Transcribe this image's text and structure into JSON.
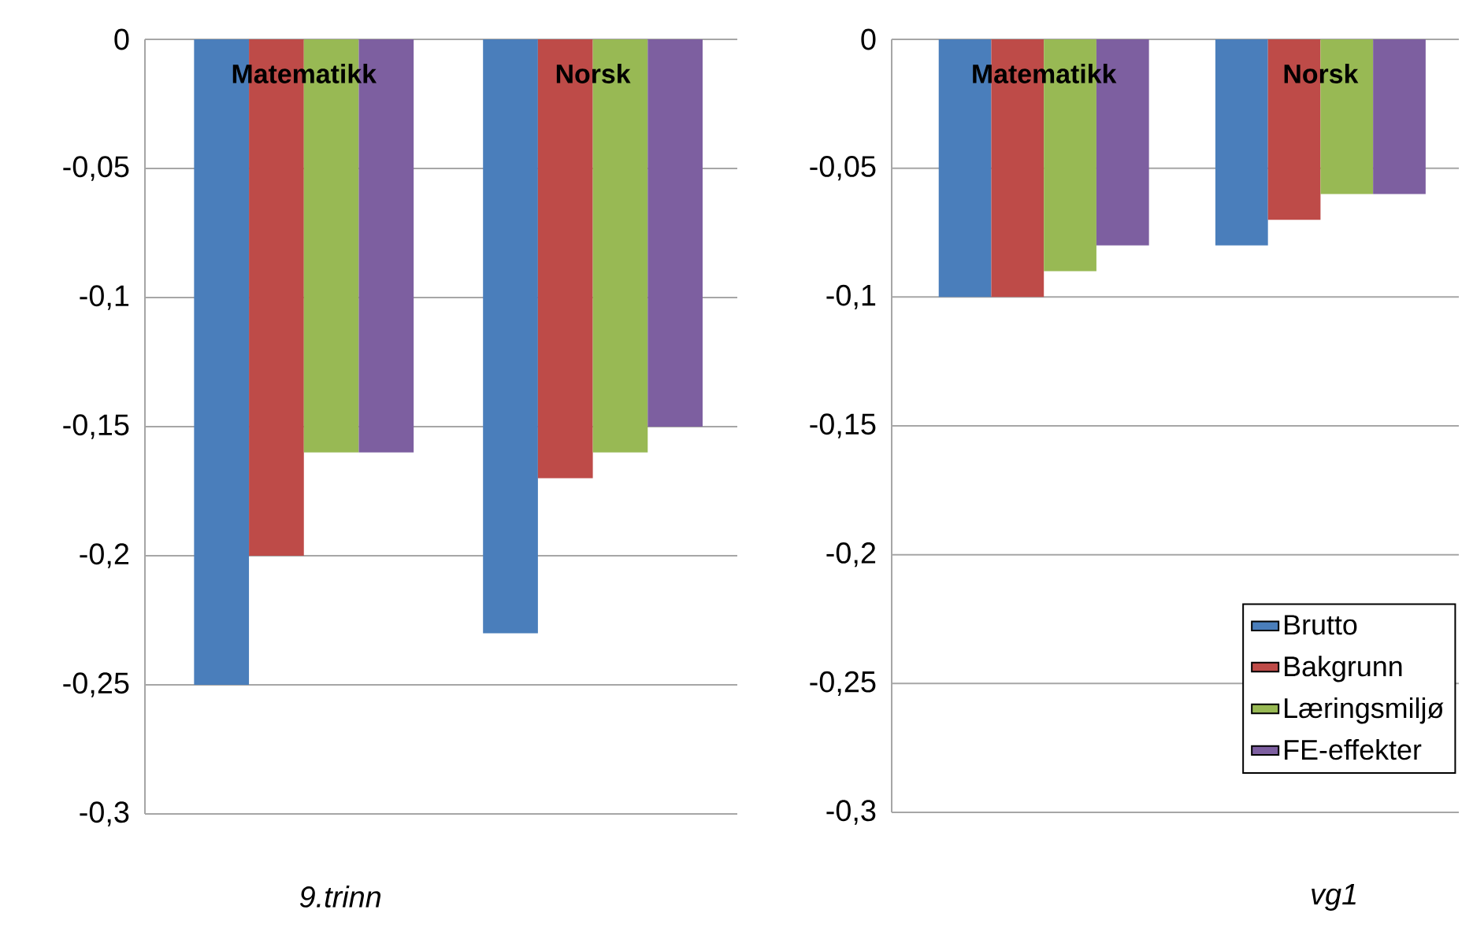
{
  "chart_data": [
    {
      "type": "bar",
      "xlabel": "9.trinn",
      "categories": [
        "Matematikk",
        "Norsk"
      ],
      "series": [
        {
          "color": "#4a7ebb",
          "values": [
            -0.25,
            -0.23
          ]
        },
        {
          "color": "#be4b48",
          "values": [
            -0.2,
            -0.17
          ]
        },
        {
          "color": "#98b954",
          "values": [
            -0.16,
            -0.16
          ]
        },
        {
          "color": "#7d5fa0",
          "values": [
            -0.16,
            -0.15
          ]
        }
      ],
      "ylim": [
        -0.3,
        0
      ],
      "yticks": [
        0,
        {
          "value": -0.05,
          "label": "-0,05"
        },
        {
          "value": -0.1,
          "label": "-0,1"
        },
        {
          "value": -0.15,
          "label": "-0,15"
        },
        {
          "value": -0.2,
          "label": "-0,2"
        },
        {
          "value": -0.25,
          "label": "-0,25"
        },
        {
          "value": -0.3,
          "label": "-0,3"
        }
      ],
      "grid": "y",
      "legend": false
    },
    {
      "type": "bar",
      "xlabel": "vg1",
      "categories": [
        "Matematikk",
        "Norsk"
      ],
      "series": [
        {
          "name": "Brutto",
          "color": "#4a7ebb",
          "values": [
            -0.1,
            -0.08
          ]
        },
        {
          "name": "Bakgrunn",
          "color": "#be4b48",
          "values": [
            -0.1,
            -0.07
          ]
        },
        {
          "name": "Læringsmiljø",
          "color": "#98b954",
          "values": [
            -0.09,
            -0.06
          ]
        },
        {
          "name": "FE-effekter",
          "color": "#7d5fa0",
          "values": [
            -0.08,
            -0.06
          ]
        }
      ],
      "ylim": [
        -0.3,
        0
      ],
      "yticks": [
        0,
        {
          "value": -0.05,
          "label": "-0,05"
        },
        {
          "value": -0.1,
          "label": "-0,1"
        },
        {
          "value": -0.15,
          "label": "-0,15"
        },
        {
          "value": -0.2,
          "label": "-0,2"
        },
        {
          "value": -0.25,
          "label": "-0,25"
        },
        {
          "value": -0.3,
          "label": "-0,3"
        }
      ],
      "grid": "y",
      "legend": "bottom right"
    }
  ]
}
